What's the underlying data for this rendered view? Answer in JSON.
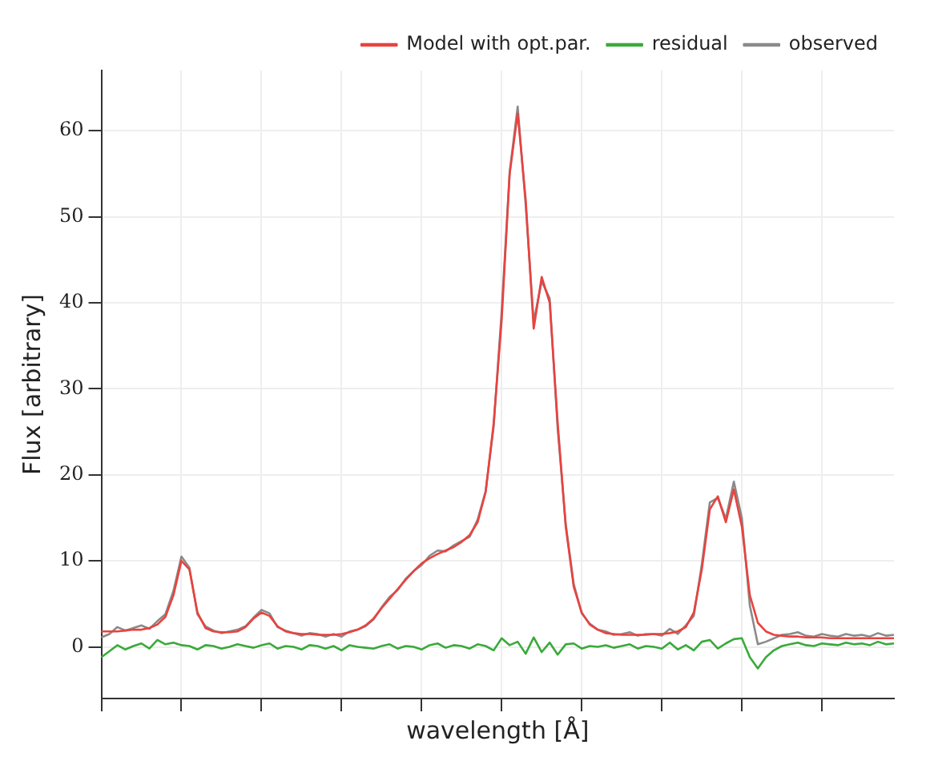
{
  "chart_data": {
    "type": "line",
    "xlabel": "wavelength [Å]",
    "ylabel": "Flux [arbitrary]",
    "categories": [
      null,
      null,
      null,
      null,
      null,
      null,
      null,
      null,
      null,
      null,
      null,
      null,
      null,
      null,
      null,
      null,
      null,
      null,
      null,
      null,
      null,
      null,
      null,
      null,
      null,
      null,
      null,
      null,
      null,
      null,
      null,
      null,
      null,
      null,
      null,
      null,
      null,
      null,
      null,
      null,
      null,
      null,
      null,
      null,
      null,
      null,
      null,
      null,
      null,
      null,
      null,
      null,
      null,
      null,
      null,
      null,
      null,
      null,
      null,
      null,
      null,
      null,
      null,
      null,
      null,
      null,
      null,
      null,
      null,
      null,
      null,
      null,
      null,
      null,
      null,
      null,
      null,
      null,
      null,
      null,
      null,
      null,
      null,
      null,
      null,
      null,
      null,
      null,
      null,
      null,
      null,
      null,
      null,
      null,
      null,
      null,
      null,
      null,
      null,
      null
    ],
    "series": [
      {
        "name": "Model with opt.par.",
        "color": "#e8433f",
        "values": [
          1.8,
          1.8,
          1.8,
          1.9,
          2,
          2,
          2.2,
          2.6,
          3.5,
          6,
          10,
          9,
          4,
          2.2,
          1.8,
          1.7,
          1.7,
          1.8,
          2.3,
          3.3,
          4,
          3.6,
          2.4,
          1.8,
          1.6,
          1.5,
          1.5,
          1.4,
          1.4,
          1.4,
          1.5,
          1.7,
          2,
          2.5,
          3.3,
          4.5,
          5.6,
          6.7,
          7.8,
          8.8,
          9.7,
          10.3,
          10.8,
          11.2,
          11.6,
          12.2,
          13,
          14.5,
          18,
          26,
          38,
          55,
          62,
          52,
          37,
          43,
          40,
          26,
          14,
          7,
          4,
          2.6,
          2,
          1.6,
          1.5,
          1.4,
          1.4,
          1.4,
          1.4,
          1.5,
          1.5,
          1.6,
          1.8,
          2.3,
          4,
          9,
          16,
          17.5,
          14.5,
          18.3,
          14,
          6,
          2.8,
          1.8,
          1.4,
          1.3,
          1.2,
          1.2,
          1.1,
          1.1,
          1.1,
          1,
          1,
          1,
          1,
          1,
          1,
          1,
          1,
          1
        ]
      },
      {
        "name": "residual",
        "color": "#3aaa3a",
        "values": [
          -1.2,
          -0.5,
          0.2,
          -0.3,
          0.1,
          0.4,
          -0.2,
          0.8,
          0.3,
          0.5,
          0.2,
          0.1,
          -0.3,
          0.2,
          0.1,
          -0.2,
          0,
          0.3,
          0.1,
          -0.1,
          0.2,
          0.4,
          -0.2,
          0.1,
          0,
          -0.3,
          0.2,
          0.1,
          -0.2,
          0.1,
          -0.4,
          0.2,
          0,
          -0.1,
          -0.2,
          0.1,
          0.3,
          -0.2,
          0.1,
          0,
          -0.3,
          0.2,
          0.4,
          -0.1,
          0.2,
          0.1,
          -0.2,
          0.3,
          0.1,
          -0.4,
          1,
          0.2,
          0.6,
          -0.8,
          1.1,
          -0.6,
          0.5,
          -0.9,
          0.3,
          0.4,
          -0.2,
          0.1,
          0,
          0.2,
          -0.1,
          0.1,
          0.3,
          -0.2,
          0.1,
          0,
          -0.2,
          0.5,
          -0.3,
          0.2,
          -0.4,
          0.6,
          0.8,
          -0.2,
          0.4,
          0.9,
          1,
          -1.2,
          -2.5,
          -1.2,
          -0.4,
          0.1,
          0.3,
          0.5,
          0.2,
          0.1,
          0.4,
          0.3,
          0.2,
          0.5,
          0.3,
          0.4,
          0.2,
          0.6,
          0.3,
          0.4
        ]
      },
      {
        "name": "observed",
        "color": "#8a8a8a",
        "values": [
          1.1,
          1.5,
          2.3,
          1.9,
          2.2,
          2.5,
          2.1,
          3,
          3.8,
          6.5,
          10.5,
          9.2,
          3.8,
          2.4,
          1.9,
          1.6,
          1.8,
          2,
          2.4,
          3.4,
          4.3,
          3.9,
          2.3,
          1.9,
          1.6,
          1.3,
          1.6,
          1.5,
          1.2,
          1.5,
          1.2,
          1.8,
          2,
          2.4,
          3.2,
          4.6,
          5.8,
          6.6,
          7.9,
          8.8,
          9.5,
          10.6,
          11.2,
          11.1,
          11.8,
          12.3,
          12.8,
          14.8,
          18.1,
          25.6,
          39,
          55.2,
          62.8,
          51.4,
          37.8,
          42.5,
          40.5,
          25.3,
          14.3,
          7.3,
          3.9,
          2.7,
          2,
          1.8,
          1.4,
          1.5,
          1.7,
          1.3,
          1.5,
          1.5,
          1.3,
          2.1,
          1.5,
          2.5,
          3.6,
          9.6,
          16.8,
          17.3,
          14.9,
          19.2,
          15,
          4.8,
          0.3,
          0.6,
          1,
          1.4,
          1.5,
          1.7,
          1.3,
          1.2,
          1.5,
          1.3,
          1.2,
          1.5,
          1.3,
          1.4,
          1.2,
          1.6,
          1.3,
          1.4
        ]
      }
    ],
    "ylim": [
      -6,
      67
    ],
    "yticks": [
      0,
      10,
      20,
      30,
      40,
      50,
      60
    ],
    "grid": true,
    "legend": "top right",
    "tick_labels": "y",
    "marker": "none",
    "line_style": "solid"
  }
}
